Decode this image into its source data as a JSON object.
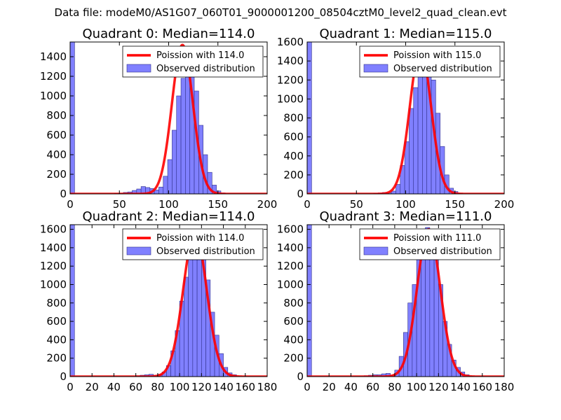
{
  "figure": {
    "suptitle": "Data file: modeM0/AS1G07_060T01_9000001200_08504cztM0_level2_quad_clean.evt"
  },
  "style": {
    "bar_fill": "#8080ff",
    "bar_edge": "#30308a",
    "line_color": "#ff0000",
    "axis_color": "#000000"
  },
  "chart_data": [
    {
      "type": "bar",
      "title": "Quadrant 0: Median=114.0",
      "xlim": [
        0,
        200
      ],
      "ylim": [
        0,
        1550
      ],
      "xticks": [
        0,
        50,
        100,
        150,
        200
      ],
      "yticks": [
        0,
        200,
        400,
        600,
        800,
        1000,
        1200,
        1400
      ],
      "legend": {
        "position": "top-right",
        "line_label": "Poission with 114.0",
        "bar_label": "Observed distribution"
      },
      "bin_width": 4.5,
      "bins": [
        [
          0,
          1550
        ],
        [
          4.5,
          0
        ],
        [
          9,
          0
        ],
        [
          13.5,
          0
        ],
        [
          18,
          0
        ],
        [
          22.5,
          0
        ],
        [
          27,
          0
        ],
        [
          31.5,
          0
        ],
        [
          36,
          0
        ],
        [
          40.5,
          0
        ],
        [
          45,
          5
        ],
        [
          49.5,
          5
        ],
        [
          54,
          15
        ],
        [
          58.5,
          20
        ],
        [
          63,
          35
        ],
        [
          67.5,
          50
        ],
        [
          72,
          75
        ],
        [
          76.5,
          65
        ],
        [
          81,
          55
        ],
        [
          85.5,
          40
        ],
        [
          90,
          70
        ],
        [
          94.5,
          180
        ],
        [
          99,
          350
        ],
        [
          103.5,
          650
        ],
        [
          108,
          1000
        ],
        [
          112.5,
          1180
        ],
        [
          117,
          1320
        ],
        [
          121.5,
          1250
        ],
        [
          126,
          1050
        ],
        [
          130.5,
          700
        ],
        [
          135,
          400
        ],
        [
          139.5,
          220
        ],
        [
          144,
          90
        ],
        [
          148.5,
          30
        ],
        [
          153,
          10
        ],
        [
          157.5,
          0
        ],
        [
          162,
          0
        ],
        [
          166.5,
          0
        ],
        [
          171,
          0
        ],
        [
          175.5,
          0
        ],
        [
          180,
          0
        ]
      ],
      "poisson_mean": 114.0,
      "poisson_peak": 1520
    },
    {
      "type": "bar",
      "title": "Quadrant 1: Median=115.0",
      "xlim": [
        0,
        200
      ],
      "ylim": [
        0,
        1600
      ],
      "xticks": [
        0,
        50,
        100,
        150,
        200
      ],
      "yticks": [
        0,
        200,
        400,
        600,
        800,
        1000,
        1200,
        1400,
        1600
      ],
      "legend": {
        "position": "top-right",
        "line_label": "Poission with 115.0",
        "bar_label": "Observed distribution"
      },
      "bin_width": 4.5,
      "bins": [
        [
          0,
          1600
        ],
        [
          4.5,
          0
        ],
        [
          9,
          0
        ],
        [
          13.5,
          0
        ],
        [
          18,
          0
        ],
        [
          22.5,
          0
        ],
        [
          27,
          0
        ],
        [
          31.5,
          0
        ],
        [
          36,
          0
        ],
        [
          40.5,
          0
        ],
        [
          45,
          0
        ],
        [
          49.5,
          0
        ],
        [
          54,
          0
        ],
        [
          58.5,
          0
        ],
        [
          63,
          0
        ],
        [
          67.5,
          5
        ],
        [
          72,
          10
        ],
        [
          76.5,
          15
        ],
        [
          81,
          10
        ],
        [
          85.5,
          30
        ],
        [
          90,
          100
        ],
        [
          94.5,
          300
        ],
        [
          99,
          550
        ],
        [
          103.5,
          900
        ],
        [
          108,
          1120
        ],
        [
          112.5,
          1300
        ],
        [
          117,
          1420
        ],
        [
          121.5,
          1370
        ],
        [
          126,
          1200
        ],
        [
          130.5,
          850
        ],
        [
          135,
          500
        ],
        [
          139.5,
          200
        ],
        [
          144,
          60
        ],
        [
          148.5,
          25
        ],
        [
          153,
          5
        ],
        [
          157.5,
          0
        ],
        [
          162,
          0
        ],
        [
          166.5,
          0
        ],
        [
          171,
          0
        ],
        [
          175.5,
          0
        ],
        [
          180,
          0
        ],
        [
          184.5,
          0
        ]
      ],
      "poisson_mean": 115.0,
      "poisson_peak": 1530
    },
    {
      "type": "bar",
      "title": "Quadrant 2: Median=114.0",
      "xlim": [
        0,
        180
      ],
      "ylim": [
        0,
        1650
      ],
      "xticks": [
        0,
        20,
        40,
        60,
        80,
        100,
        120,
        140,
        160,
        180
      ],
      "yticks": [
        0,
        200,
        400,
        600,
        800,
        1000,
        1200,
        1400,
        1600
      ],
      "legend": {
        "position": "top-right",
        "line_label": "Poission with 114.0",
        "bar_label": "Observed distribution"
      },
      "bin_width": 4,
      "bins": [
        [
          0,
          1650
        ],
        [
          4,
          0
        ],
        [
          8,
          0
        ],
        [
          12,
          0
        ],
        [
          16,
          0
        ],
        [
          20,
          0
        ],
        [
          24,
          0
        ],
        [
          28,
          0
        ],
        [
          32,
          0
        ],
        [
          36,
          0
        ],
        [
          40,
          0
        ],
        [
          44,
          0
        ],
        [
          48,
          0
        ],
        [
          52,
          0
        ],
        [
          56,
          0
        ],
        [
          60,
          10
        ],
        [
          64,
          15
        ],
        [
          68,
          20
        ],
        [
          72,
          25
        ],
        [
          76,
          15
        ],
        [
          80,
          25
        ],
        [
          84,
          50
        ],
        [
          88,
          120
        ],
        [
          92,
          280
        ],
        [
          96,
          500
        ],
        [
          100,
          820
        ],
        [
          104,
          1080
        ],
        [
          108,
          1380
        ],
        [
          112,
          1540
        ],
        [
          116,
          1480
        ],
        [
          120,
          1320
        ],
        [
          124,
          1050
        ],
        [
          128,
          700
        ],
        [
          132,
          450
        ],
        [
          136,
          250
        ],
        [
          140,
          100
        ],
        [
          144,
          40
        ],
        [
          148,
          20
        ],
        [
          152,
          0
        ],
        [
          156,
          0
        ],
        [
          160,
          0
        ],
        [
          164,
          0
        ],
        [
          168,
          0
        ],
        [
          172,
          0
        ]
      ],
      "poisson_mean": 114.0,
      "poisson_peak": 1570
    },
    {
      "type": "bar",
      "title": "Quadrant 3: Median=111.0",
      "xlim": [
        0,
        180
      ],
      "ylim": [
        0,
        1650
      ],
      "xticks": [
        0,
        20,
        40,
        60,
        80,
        100,
        120,
        140,
        160,
        180
      ],
      "yticks": [
        0,
        200,
        400,
        600,
        800,
        1000,
        1200,
        1400,
        1600
      ],
      "legend": {
        "position": "top-right",
        "line_label": "Poission with 111.0",
        "bar_label": "Observed distribution"
      },
      "bin_width": 4,
      "bins": [
        [
          0,
          1650
        ],
        [
          4,
          0
        ],
        [
          8,
          0
        ],
        [
          12,
          0
        ],
        [
          16,
          0
        ],
        [
          20,
          0
        ],
        [
          24,
          0
        ],
        [
          28,
          0
        ],
        [
          32,
          0
        ],
        [
          36,
          0
        ],
        [
          40,
          0
        ],
        [
          44,
          0
        ],
        [
          48,
          0
        ],
        [
          52,
          10
        ],
        [
          56,
          15
        ],
        [
          60,
          20
        ],
        [
          64,
          20
        ],
        [
          68,
          30
        ],
        [
          72,
          35
        ],
        [
          76,
          15
        ],
        [
          80,
          70
        ],
        [
          84,
          220
        ],
        [
          88,
          480
        ],
        [
          92,
          800
        ],
        [
          96,
          1000
        ],
        [
          100,
          1320
        ],
        [
          104,
          1550
        ],
        [
          108,
          1620
        ],
        [
          112,
          1560
        ],
        [
          116,
          1450
        ],
        [
          120,
          1000
        ],
        [
          124,
          600
        ],
        [
          128,
          350
        ],
        [
          132,
          180
        ],
        [
          136,
          100
        ],
        [
          140,
          50
        ],
        [
          144,
          20
        ],
        [
          148,
          5
        ],
        [
          152,
          0
        ],
        [
          156,
          0
        ],
        [
          160,
          0
        ],
        [
          164,
          0
        ]
      ],
      "poisson_mean": 111.0,
      "poisson_peak": 1600
    }
  ]
}
